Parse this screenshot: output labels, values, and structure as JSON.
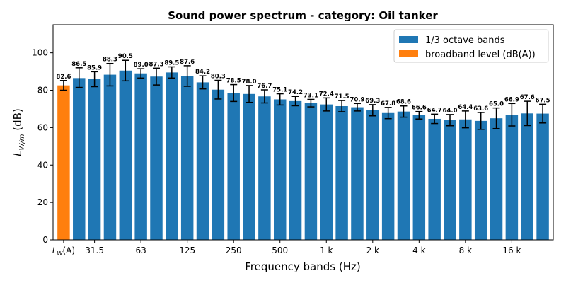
{
  "chart_data": {
    "type": "bar",
    "title": "Sound power spectrum - category: Oil tanker",
    "xlabel": "Frequency bands (Hz)",
    "ylabel": {
      "main": "L",
      "sub": "W/m",
      "unit": " (dB)"
    },
    "ylim": [
      0,
      115
    ],
    "yticks": [
      0,
      20,
      40,
      60,
      80,
      100
    ],
    "broadband": {
      "value": 82.6,
      "err_low": 2.6,
      "err_high": 2.6,
      "tick_label": {
        "main": "L",
        "sub": "W",
        "suffix": "(A)"
      },
      "color": "#ff7f0e"
    },
    "bands_color": "#1f77b4",
    "bands": [
      {
        "value": 86.5,
        "err_low": 5.0,
        "err_high": 5.5,
        "label": "86.5",
        "tick": ""
      },
      {
        "value": 85.9,
        "err_low": 4.0,
        "err_high": 4.0,
        "label": "85.9",
        "tick": "31.5"
      },
      {
        "value": 88.3,
        "err_low": 6.0,
        "err_high": 6.0,
        "label": "88.3",
        "tick": ""
      },
      {
        "value": 90.5,
        "err_low": 5.5,
        "err_high": 5.5,
        "label": "90.5",
        "tick": ""
      },
      {
        "value": 89.0,
        "err_low": 2.5,
        "err_high": 2.5,
        "label": "89.0",
        "tick": "63"
      },
      {
        "value": 87.3,
        "err_low": 4.5,
        "err_high": 4.5,
        "label": "87.3",
        "tick": ""
      },
      {
        "value": 89.5,
        "err_low": 3.0,
        "err_high": 3.0,
        "label": "89.5",
        "tick": ""
      },
      {
        "value": 87.6,
        "err_low": 5.5,
        "err_high": 5.5,
        "label": "87.6",
        "tick": "125"
      },
      {
        "value": 84.2,
        "err_low": 3.5,
        "err_high": 3.5,
        "label": "84.2",
        "tick": ""
      },
      {
        "value": 80.3,
        "err_low": 5.0,
        "err_high": 5.0,
        "label": "80.3",
        "tick": ""
      },
      {
        "value": 78.5,
        "err_low": 4.5,
        "err_high": 4.5,
        "label": "78.5",
        "tick": "250"
      },
      {
        "value": 78.0,
        "err_low": 4.5,
        "err_high": 4.5,
        "label": "78.0",
        "tick": ""
      },
      {
        "value": 76.7,
        "err_low": 3.5,
        "err_high": 3.5,
        "label": "76.7",
        "tick": ""
      },
      {
        "value": 75.1,
        "err_low": 3.0,
        "err_high": 3.0,
        "label": "75.1",
        "tick": "500"
      },
      {
        "value": 74.2,
        "err_low": 2.5,
        "err_high": 2.5,
        "label": "74.2",
        "tick": ""
      },
      {
        "value": 73.1,
        "err_low": 2.0,
        "err_high": 2.0,
        "label": "73.1",
        "tick": ""
      },
      {
        "value": 72.4,
        "err_low": 3.5,
        "err_high": 3.5,
        "label": "72.4",
        "tick": "1 k"
      },
      {
        "value": 71.5,
        "err_low": 3.0,
        "err_high": 3.0,
        "label": "71.5",
        "tick": ""
      },
      {
        "value": 70.9,
        "err_low": 2.0,
        "err_high": 2.0,
        "label": "70.9",
        "tick": ""
      },
      {
        "value": 69.3,
        "err_low": 3.0,
        "err_high": 3.0,
        "label": "69.3",
        "tick": "2 k"
      },
      {
        "value": 67.8,
        "err_low": 3.0,
        "err_high": 3.0,
        "label": "67.8",
        "tick": ""
      },
      {
        "value": 68.6,
        "err_low": 3.0,
        "err_high": 3.0,
        "label": "68.6",
        "tick": ""
      },
      {
        "value": 66.6,
        "err_low": 2.0,
        "err_high": 2.0,
        "label": "66.6",
        "tick": "4 k"
      },
      {
        "value": 64.7,
        "err_low": 2.5,
        "err_high": 2.5,
        "label": "64.7",
        "tick": ""
      },
      {
        "value": 64.0,
        "err_low": 3.0,
        "err_high": 3.0,
        "label": "64.0",
        "tick": ""
      },
      {
        "value": 64.4,
        "err_low": 4.5,
        "err_high": 4.5,
        "label": "64.4",
        "tick": "8 k"
      },
      {
        "value": 63.6,
        "err_low": 4.5,
        "err_high": 4.5,
        "label": "63.6",
        "tick": ""
      },
      {
        "value": 65.0,
        "err_low": 5.5,
        "err_high": 5.5,
        "label": "65.0",
        "tick": ""
      },
      {
        "value": 66.9,
        "err_low": 6.0,
        "err_high": 6.0,
        "label": "66.9",
        "tick": "16 k"
      },
      {
        "value": 67.6,
        "err_low": 6.5,
        "err_high": 6.5,
        "label": "67.6",
        "tick": ""
      },
      {
        "value": 67.5,
        "err_low": 5.0,
        "err_high": 5.0,
        "label": "67.5",
        "tick": ""
      }
    ],
    "legend": {
      "position": "top-right",
      "entries": [
        {
          "label": "1/3 octave bands",
          "color": "#1f77b4"
        },
        {
          "label": "broadband level (dB(A))",
          "color": "#ff7f0e"
        }
      ]
    },
    "grid": false
  }
}
